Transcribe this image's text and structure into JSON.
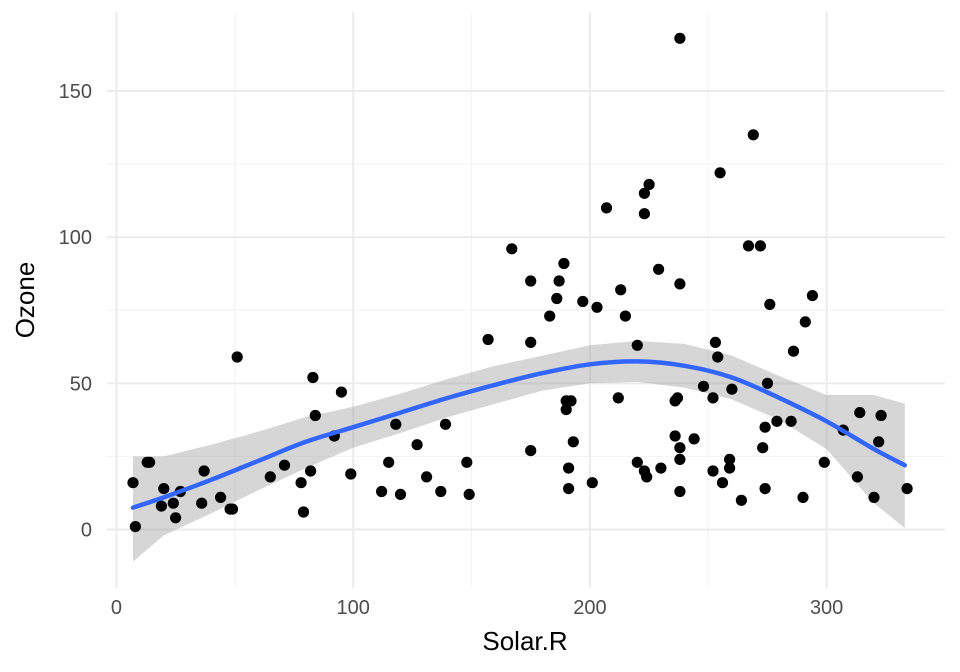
{
  "chart_data": {
    "type": "scatter",
    "title": "",
    "xlabel": "Solar.R",
    "ylabel": "Ozone",
    "xlim": [
      -4,
      350
    ],
    "ylim": [
      -20,
      177
    ],
    "x_ticks": [
      0,
      100,
      200,
      300
    ],
    "y_ticks": [
      0,
      50,
      100,
      150
    ],
    "x_minor": [
      50,
      150,
      250
    ],
    "y_minor": [
      25,
      75,
      125
    ],
    "grid": true,
    "theme": "minimal",
    "colors": {
      "points": "#000000",
      "smooth_line": "#3366ff",
      "confidence_band": "#999999",
      "grid_major": "#ebebeb",
      "grid_minor": "#f4f4f4"
    },
    "points": [
      [
        7,
        16
      ],
      [
        8,
        1
      ],
      [
        13,
        23
      ],
      [
        14,
        23
      ],
      [
        19,
        8
      ],
      [
        20,
        14
      ],
      [
        24,
        9
      ],
      [
        25,
        4
      ],
      [
        27,
        13
      ],
      [
        36,
        9
      ],
      [
        37,
        20
      ],
      [
        44,
        11
      ],
      [
        48,
        7
      ],
      [
        49,
        7
      ],
      [
        51,
        59
      ],
      [
        65,
        18
      ],
      [
        71,
        22
      ],
      [
        78,
        16
      ],
      [
        79,
        6
      ],
      [
        82,
        20
      ],
      [
        83,
        52
      ],
      [
        84,
        39
      ],
      [
        92,
        32
      ],
      [
        95,
        47
      ],
      [
        99,
        19
      ],
      [
        112,
        13
      ],
      [
        115,
        23
      ],
      [
        118,
        36
      ],
      [
        120,
        12
      ],
      [
        127,
        29
      ],
      [
        131,
        18
      ],
      [
        137,
        13
      ],
      [
        139,
        36
      ],
      [
        148,
        23
      ],
      [
        149,
        12
      ],
      [
        157,
        65
      ],
      [
        167,
        96
      ],
      [
        175,
        27
      ],
      [
        175,
        64
      ],
      [
        175,
        85
      ],
      [
        183,
        73
      ],
      [
        186,
        79
      ],
      [
        187,
        85
      ],
      [
        189,
        91
      ],
      [
        190,
        44
      ],
      [
        190,
        41
      ],
      [
        191,
        21
      ],
      [
        191,
        14
      ],
      [
        192,
        44
      ],
      [
        193,
        30
      ],
      [
        197,
        78
      ],
      [
        201,
        16
      ],
      [
        203,
        76
      ],
      [
        207,
        110
      ],
      [
        212,
        45
      ],
      [
        213,
        82
      ],
      [
        215,
        73
      ],
      [
        220,
        63
      ],
      [
        220,
        23
      ],
      [
        223,
        115
      ],
      [
        223,
        108
      ],
      [
        223,
        20
      ],
      [
        224,
        18
      ],
      [
        225,
        118
      ],
      [
        229,
        89
      ],
      [
        230,
        21
      ],
      [
        236,
        32
      ],
      [
        236,
        44
      ],
      [
        237,
        45
      ],
      [
        238,
        84
      ],
      [
        238,
        168
      ],
      [
        238,
        28
      ],
      [
        238,
        24
      ],
      [
        238,
        13
      ],
      [
        244,
        31
      ],
      [
        248,
        49
      ],
      [
        252,
        45
      ],
      [
        252,
        20
      ],
      [
        253,
        64
      ],
      [
        254,
        59
      ],
      [
        255,
        122
      ],
      [
        256,
        16
      ],
      [
        259,
        24
      ],
      [
        259,
        21
      ],
      [
        260,
        48
      ],
      [
        264,
        10
      ],
      [
        267,
        97
      ],
      [
        269,
        135
      ],
      [
        272,
        97
      ],
      [
        273,
        28
      ],
      [
        274,
        35
      ],
      [
        274,
        14
      ],
      [
        275,
        50
      ],
      [
        276,
        77
      ],
      [
        279,
        37
      ],
      [
        285,
        37
      ],
      [
        286,
        61
      ],
      [
        290,
        11
      ],
      [
        291,
        71
      ],
      [
        294,
        80
      ],
      [
        299,
        23
      ],
      [
        307,
        34
      ],
      [
        313,
        18
      ],
      [
        314,
        40
      ],
      [
        320,
        11
      ],
      [
        322,
        30
      ],
      [
        323,
        39
      ],
      [
        334,
        14
      ]
    ],
    "smooth": {
      "method": "loess",
      "fit": [
        [
          7,
          7.5
        ],
        [
          20,
          11
        ],
        [
          40,
          17
        ],
        [
          60,
          23.5
        ],
        [
          80,
          30
        ],
        [
          100,
          35
        ],
        [
          120,
          40
        ],
        [
          140,
          45
        ],
        [
          160,
          49.5
        ],
        [
          180,
          53.5
        ],
        [
          200,
          56.5
        ],
        [
          220,
          57.5
        ],
        [
          240,
          56
        ],
        [
          260,
          52
        ],
        [
          280,
          45
        ],
        [
          300,
          37
        ],
        [
          320,
          27.5
        ],
        [
          333,
          22
        ]
      ],
      "upper": [
        [
          7,
          25
        ],
        [
          20,
          25
        ],
        [
          40,
          29
        ],
        [
          60,
          33.5
        ],
        [
          80,
          38.5
        ],
        [
          100,
          42
        ],
        [
          120,
          46.5
        ],
        [
          140,
          51.5
        ],
        [
          160,
          56
        ],
        [
          180,
          59.5
        ],
        [
          200,
          63
        ],
        [
          220,
          64.5
        ],
        [
          240,
          63.5
        ],
        [
          260,
          59.5
        ],
        [
          280,
          52.5
        ],
        [
          300,
          46
        ],
        [
          320,
          46
        ],
        [
          333,
          43
        ]
      ],
      "lower": [
        [
          7,
          -11
        ],
        [
          20,
          -2
        ],
        [
          40,
          5.5
        ],
        [
          60,
          13.5
        ],
        [
          80,
          21
        ],
        [
          100,
          28
        ],
        [
          120,
          33
        ],
        [
          140,
          38.5
        ],
        [
          160,
          43
        ],
        [
          180,
          47.5
        ],
        [
          200,
          50
        ],
        [
          220,
          50.5
        ],
        [
          240,
          48.5
        ],
        [
          260,
          44.5
        ],
        [
          280,
          37.5
        ],
        [
          300,
          27.5
        ],
        [
          320,
          9
        ],
        [
          333,
          0.5
        ]
      ]
    }
  }
}
